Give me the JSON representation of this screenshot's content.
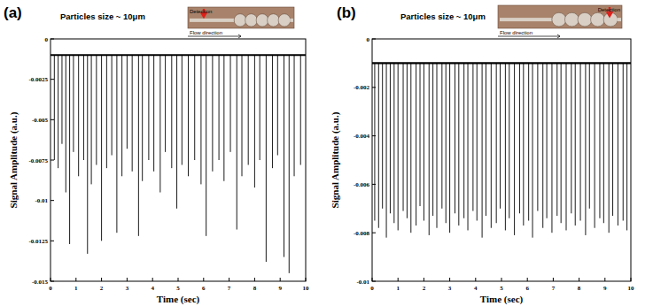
{
  "chart_data": [
    {
      "type": "line",
      "title": "(a)",
      "subtitle": "Particles size ~ 10μm",
      "annotations": [
        "Detection",
        "Flow direction"
      ],
      "xlabel": "Time (sec)",
      "ylabel": "Signal Amplitude (a.u.)",
      "xlim": [
        0,
        10
      ],
      "xticks": [
        0,
        1,
        2,
        3,
        4,
        5,
        6,
        7,
        8,
        9,
        10
      ],
      "ylim": [
        -0.015,
        0
      ],
      "yticks": [
        -0.015,
        -0.0125,
        -0.01,
        -0.0075,
        -0.005,
        -0.0025,
        0
      ],
      "color": "#000000",
      "series": [
        {
          "type": "line",
          "x": [
            0,
            10
          ],
          "values": [
            -0.001,
            -0.001
          ]
        },
        {
          "type": "stem",
          "x": [
            0.15,
            0.3,
            0.45,
            0.6,
            0.75,
            0.9,
            1.1,
            1.3,
            1.45,
            1.6,
            1.8,
            2.0,
            2.2,
            2.4,
            2.6,
            2.8,
            3.0,
            3.2,
            3.45,
            3.6,
            3.85,
            4.05,
            4.3,
            4.5,
            4.75,
            4.95,
            5.15,
            5.4,
            5.65,
            5.9,
            6.1,
            6.35,
            6.6,
            6.8,
            7.05,
            7.3,
            7.5,
            7.75,
            8.0,
            8.2,
            8.45,
            8.7,
            8.9,
            9.15,
            9.35,
            9.55,
            9.8
          ],
          "values": [
            -0.0075,
            -0.008,
            -0.0065,
            -0.0095,
            -0.0127,
            -0.007,
            -0.0085,
            -0.0075,
            -0.0133,
            -0.009,
            -0.0078,
            -0.0125,
            -0.008,
            -0.0072,
            -0.012,
            -0.0085,
            -0.0068,
            -0.0082,
            -0.0122,
            -0.0088,
            -0.0075,
            -0.0082,
            -0.0095,
            -0.007,
            -0.008,
            -0.0105,
            -0.0078,
            -0.0085,
            -0.0075,
            -0.009,
            -0.0122,
            -0.0082,
            -0.0075,
            -0.0088,
            -0.007,
            -0.0118,
            -0.0085,
            -0.0078,
            -0.0092,
            -0.0075,
            -0.0138,
            -0.008,
            -0.0072,
            -0.0135,
            -0.0145,
            -0.0085,
            -0.0078
          ]
        }
      ]
    },
    {
      "type": "line",
      "title": "(b)",
      "subtitle": "Particles size ~ 10μm",
      "annotations": [
        "Detection",
        "Flow direction"
      ],
      "xlabel": "Time (sec)",
      "ylabel": "Signal Amplitude (a.u.)",
      "xlim": [
        0,
        10
      ],
      "xticks": [
        0,
        1,
        2,
        3,
        4,
        5,
        6,
        7,
        8,
        9,
        10
      ],
      "ylim": [
        -0.01,
        0
      ],
      "yticks": [
        -0.01,
        -0.008,
        -0.006,
        -0.004,
        -0.002,
        0
      ],
      "color": "#000000",
      "series": [
        {
          "type": "line",
          "x": [
            0,
            10
          ],
          "values": [
            -0.001,
            -0.001
          ]
        },
        {
          "type": "stem",
          "x": [
            0.1,
            0.25,
            0.4,
            0.55,
            0.7,
            0.85,
            1.0,
            1.2,
            1.35,
            1.5,
            1.7,
            1.85,
            2.0,
            2.2,
            2.35,
            2.5,
            2.7,
            2.85,
            3.0,
            3.2,
            3.35,
            3.55,
            3.7,
            3.9,
            4.05,
            4.25,
            4.4,
            4.6,
            4.8,
            4.95,
            5.15,
            5.3,
            5.5,
            5.7,
            5.85,
            6.05,
            6.2,
            6.4,
            6.6,
            6.75,
            6.95,
            7.15,
            7.3,
            7.5,
            7.7,
            7.85,
            8.05,
            8.25,
            8.4,
            8.6,
            8.8,
            8.95,
            9.15,
            9.3,
            9.5,
            9.7,
            9.85
          ],
          "values": [
            -0.0075,
            -0.0078,
            -0.007,
            -0.0082,
            -0.0072,
            -0.0076,
            -0.0079,
            -0.0071,
            -0.0074,
            -0.008,
            -0.0077,
            -0.0069,
            -0.0075,
            -0.0081,
            -0.0073,
            -0.0078,
            -0.007,
            -0.0076,
            -0.008,
            -0.0072,
            -0.0077,
            -0.0074,
            -0.0079,
            -0.0071,
            -0.0075,
            -0.0082,
            -0.0073,
            -0.0078,
            -0.0076,
            -0.007,
            -0.0079,
            -0.0074,
            -0.0081,
            -0.0072,
            -0.0077,
            -0.0075,
            -0.0082,
            -0.0071,
            -0.0078,
            -0.0074,
            -0.008,
            -0.0073,
            -0.0076,
            -0.0079,
            -0.0072,
            -0.0077,
            -0.0075,
            -0.0081,
            -0.007,
            -0.0078,
            -0.0074,
            -0.0076,
            -0.008,
            -0.0073,
            -0.0077,
            -0.0075,
            -0.0079
          ]
        }
      ]
    }
  ]
}
